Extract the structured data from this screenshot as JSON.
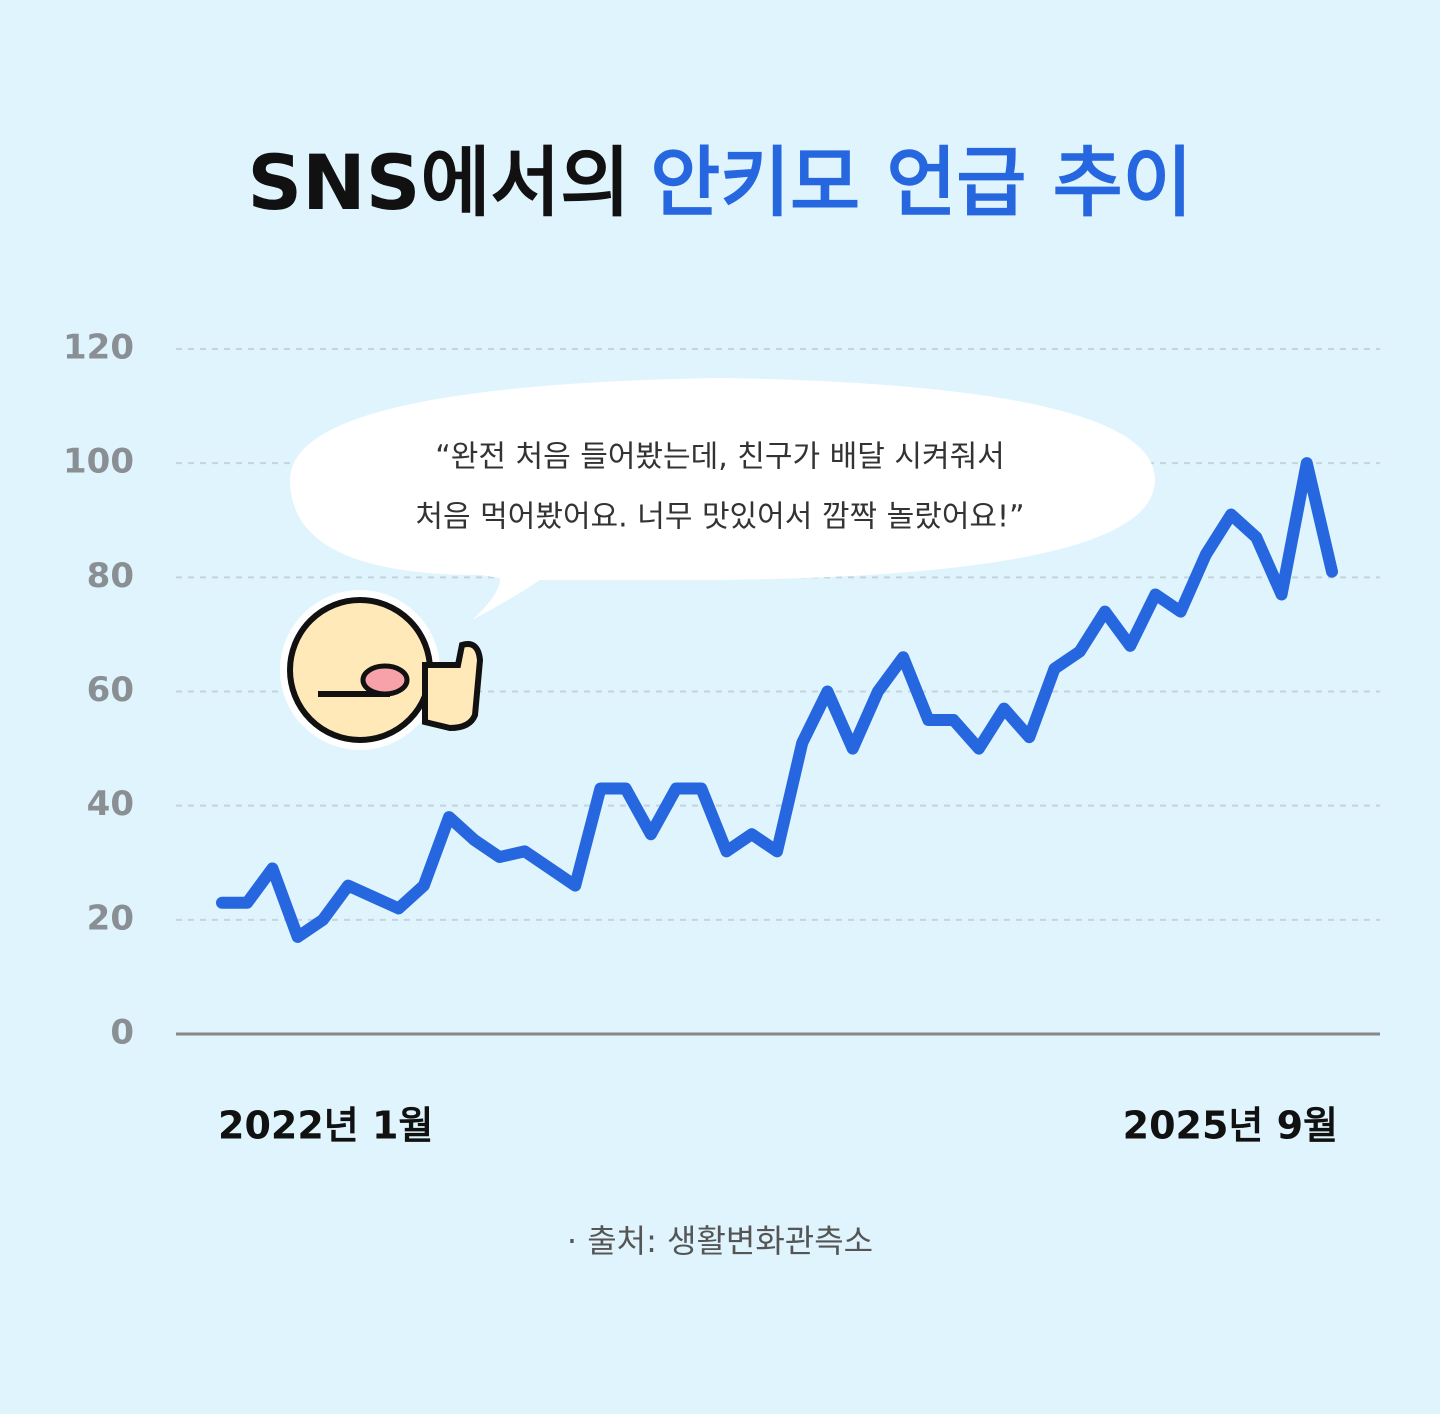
{
  "chart_data": {
    "type": "line",
    "title": [
      "SNS에서의",
      "안키모 언급 추이"
    ],
    "quote": [
      "“완전 처음 들어봤는데, 친구가 배달 시켜줘서",
      "처음 먹어봤어요. 너무 맛있어서 깜짝 놀랐어요!”"
    ],
    "source": "· 출처: 생활변화관측소",
    "categories": [
      "2022년 1월",
      null,
      null,
      null,
      null,
      null,
      null,
      null,
      null,
      null,
      null,
      null,
      null,
      null,
      null,
      null,
      null,
      null,
      null,
      null,
      null,
      null,
      null,
      null,
      null,
      null,
      null,
      null,
      null,
      null,
      null,
      null,
      null,
      null,
      null,
      null,
      null,
      null,
      null,
      null,
      null,
      null,
      null,
      null,
      "2025년 9월"
    ],
    "series": [
      {
        "color": "#2667df",
        "values": [
          23,
          23,
          29,
          17,
          20,
          26,
          24,
          22,
          26,
          38,
          34,
          31,
          32,
          29,
          26,
          43,
          43,
          35,
          43,
          43,
          32,
          35,
          32,
          51,
          60,
          50,
          60,
          66,
          55,
          55,
          50,
          57,
          52,
          64,
          67,
          74,
          68,
          77,
          74,
          84,
          91,
          87,
          77,
          100,
          81
        ]
      }
    ],
    "ylim": [
      0,
      120
    ],
    "yticks": [
      0,
      20,
      40,
      60,
      80,
      100,
      120
    ],
    "grid": true
  }
}
